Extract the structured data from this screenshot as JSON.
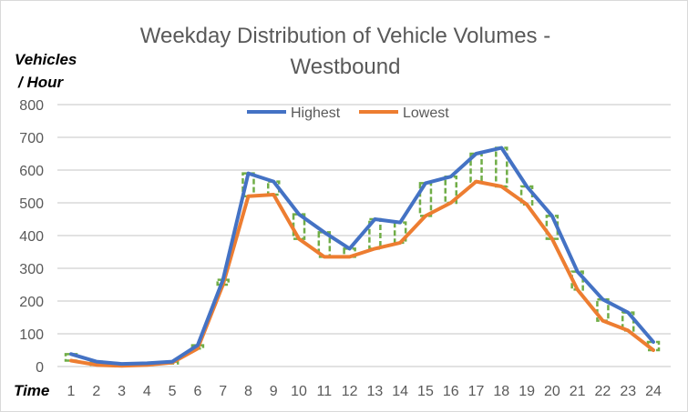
{
  "chart_data": {
    "type": "line",
    "title_line1": "Weekday Distribution of Vehicle Volumes -",
    "title_line2": "Westbound",
    "ylabel_line1": "Vehicles",
    "ylabel_line2": "/ Hour",
    "xlabel": "Time",
    "categories": [
      "1",
      "2",
      "3",
      "4",
      "5",
      "6",
      "7",
      "8",
      "9",
      "10",
      "11",
      "12",
      "13",
      "14",
      "15",
      "16",
      "17",
      "18",
      "19",
      "20",
      "21",
      "22",
      "23",
      "24"
    ],
    "ylim": [
      0,
      800
    ],
    "yticks": [
      "0",
      "100",
      "200",
      "300",
      "400",
      "500",
      "600",
      "700",
      "800"
    ],
    "grid": true,
    "legend_position": "top-center",
    "high_low_bars": true,
    "series": [
      {
        "name": "Highest",
        "color": "#4472c4",
        "values": [
          38,
          15,
          8,
          10,
          15,
          65,
          265,
          590,
          565,
          465,
          410,
          360,
          450,
          440,
          560,
          580,
          650,
          668,
          550,
          460,
          290,
          205,
          165,
          75
        ]
      },
      {
        "name": "Lowest",
        "color": "#ed7d31",
        "values": [
          18,
          5,
          2,
          5,
          12,
          55,
          250,
          520,
          525,
          390,
          335,
          335,
          360,
          378,
          460,
          500,
          565,
          550,
          495,
          390,
          235,
          140,
          110,
          50
        ]
      }
    ],
    "bar_color": "#70ad47"
  }
}
